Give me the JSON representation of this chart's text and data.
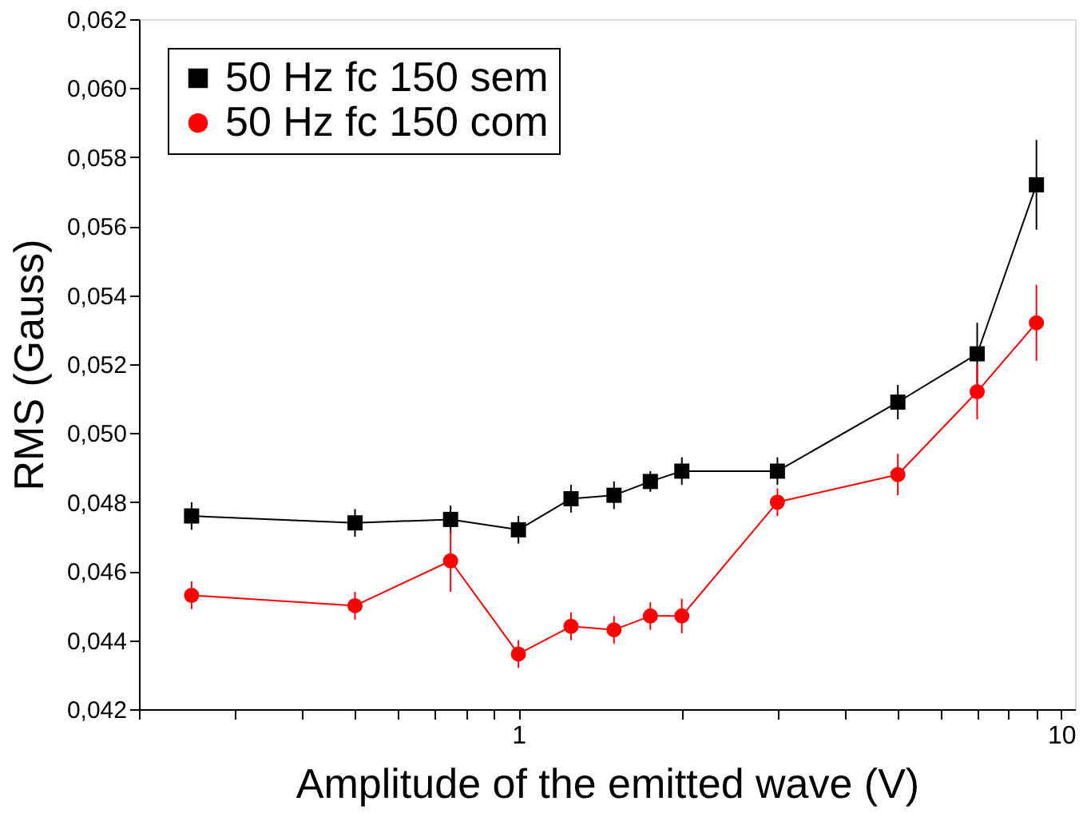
{
  "chart_data": {
    "type": "line",
    "xlabel": "Amplitude of the emitted wave (V)",
    "ylabel": "RMS (Gauss)",
    "log": "x",
    "grid": false,
    "legend": "top left",
    "line_style": "solid",
    "xlim": [
      0.2,
      10.6
    ],
    "ylim": [
      0.042,
      0.062
    ],
    "xticks": [
      {
        "value": 0.2,
        "label": null
      },
      {
        "value": 0.3,
        "label": null
      },
      {
        "value": 0.4,
        "label": null
      },
      {
        "value": 0.5,
        "label": null
      },
      {
        "value": 0.6,
        "label": null
      },
      {
        "value": 0.7,
        "label": null
      },
      {
        "value": 0.8,
        "label": null
      },
      {
        "value": 0.9,
        "label": null
      },
      1,
      {
        "value": 2,
        "label": null
      },
      {
        "value": 3,
        "label": null
      },
      {
        "value": 4,
        "label": null
      },
      {
        "value": 5,
        "label": null
      },
      {
        "value": 6,
        "label": null
      },
      {
        "value": 7,
        "label": null
      },
      {
        "value": 8,
        "label": null
      },
      {
        "value": 9,
        "label": null
      },
      10
    ],
    "yticks": [
      {
        "value": 0.042,
        "label": "0,042"
      },
      {
        "value": 0.044,
        "label": "0,044"
      },
      {
        "value": 0.046,
        "label": "0,046"
      },
      {
        "value": 0.048,
        "label": "0,048"
      },
      {
        "value": 0.05,
        "label": "0,050"
      },
      {
        "value": 0.052,
        "label": "0,052"
      },
      {
        "value": 0.054,
        "label": "0,054"
      },
      {
        "value": 0.056,
        "label": "0,056"
      },
      {
        "value": 0.058,
        "label": "0,058"
      },
      {
        "value": 0.06,
        "label": "0,060"
      },
      {
        "value": 0.062,
        "label": "0,062"
      }
    ],
    "x": [
      0.25,
      0.5,
      0.75,
      1,
      1.25,
      1.5,
      1.75,
      2,
      3,
      5,
      7,
      9
    ],
    "series": [
      {
        "name": "50 Hz fc 150 sem",
        "color": "#000000",
        "marker": "square",
        "values": [
          0.0476,
          0.0474,
          0.0475,
          0.0472,
          0.0481,
          0.0482,
          0.0486,
          0.0489,
          0.0489,
          0.0509,
          0.0523,
          0.0572
        ],
        "errors": [
          0.0004,
          0.0004,
          0.0004,
          0.0004,
          0.0004,
          0.0004,
          0.0003,
          0.0004,
          0.0004,
          0.0005,
          0.0009,
          0.0013
        ]
      },
      {
        "name": "50 Hz fc 150 com",
        "color": "#ff0000",
        "marker": "circle",
        "values": [
          0.0453,
          0.045,
          0.0463,
          0.0436,
          0.0444,
          0.0443,
          0.0447,
          0.0447,
          0.048,
          0.0488,
          0.0512,
          0.0532
        ],
        "errors": [
          0.0004,
          0.0004,
          0.0009,
          0.0004,
          0.0004,
          0.0004,
          0.0004,
          0.0005,
          0.0004,
          0.0006,
          0.0008,
          0.0011
        ]
      }
    ]
  }
}
